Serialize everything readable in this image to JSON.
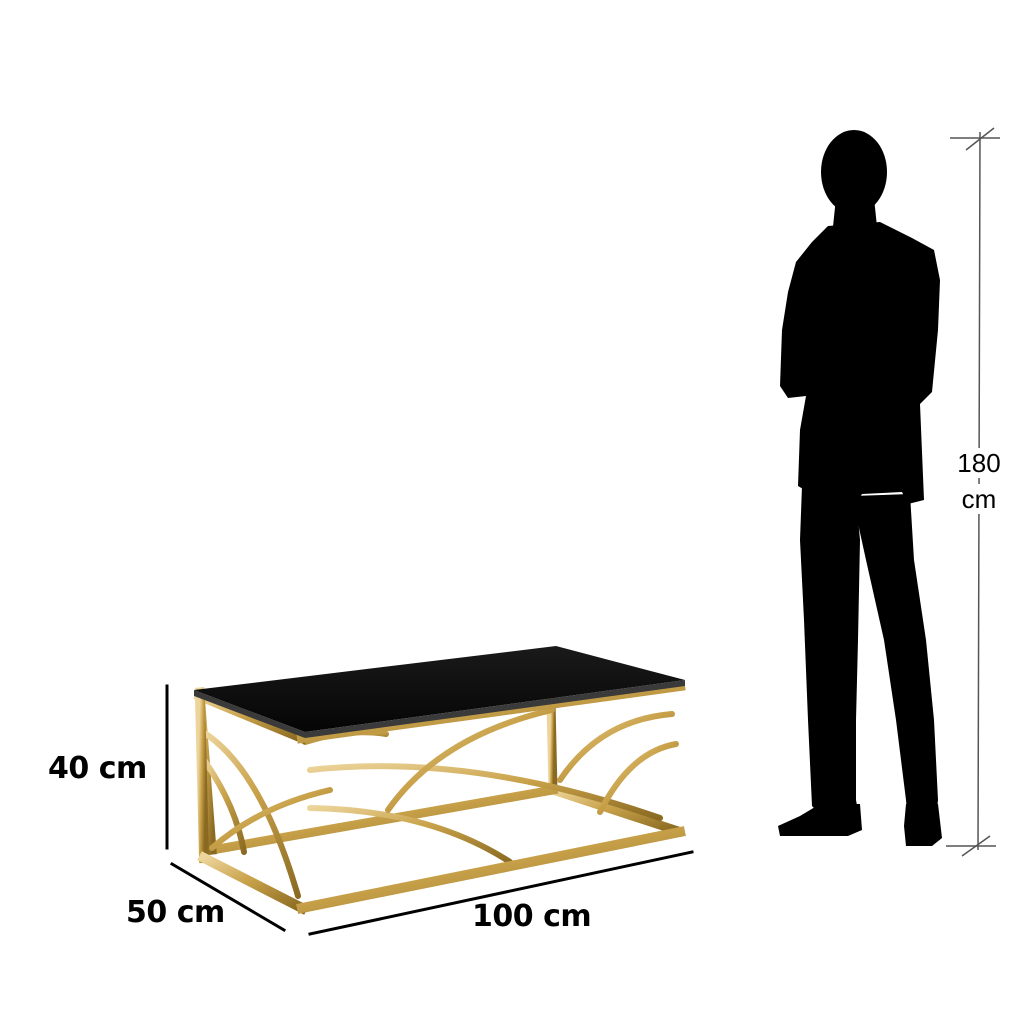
{
  "dimensions": {
    "table_height": "40 cm",
    "table_depth": "50 cm",
    "table_width": "100 cm",
    "person_height_value": "180",
    "person_height_unit": "cm"
  },
  "colors": {
    "background": "#ffffff",
    "dimension_line": "#000000",
    "person_scale_line": "#555555",
    "silhouette": "#000000",
    "table_top": "#0b0b0b",
    "frame_gold": "#c9a24a",
    "frame_gold_dark": "#8a6a22",
    "frame_gold_light": "#ecd49a"
  }
}
